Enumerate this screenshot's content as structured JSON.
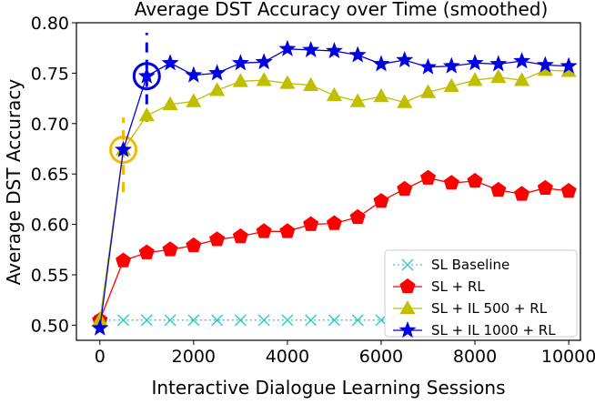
{
  "chart_data": {
    "type": "line",
    "title": "Average DST Accuracy over Time (smoothed)",
    "xlabel": "Interactive Dialogue Learning Sessions",
    "ylabel": "Average DST Accuracy",
    "xlim": [
      -500,
      10250
    ],
    "ylim": [
      0.485,
      0.8
    ],
    "x_ticks": [
      0,
      2000,
      4000,
      6000,
      8000,
      10000
    ],
    "y_ticks": [
      0.5,
      0.55,
      0.6,
      0.65,
      0.7,
      0.75,
      0.8
    ],
    "x_tick_labels": [
      "0",
      "2000",
      "4000",
      "6000",
      "8000",
      "10000"
    ],
    "y_tick_labels": [
      "0.50",
      "0.55",
      "0.60",
      "0.65",
      "0.70",
      "0.75",
      "0.80"
    ],
    "grid": false,
    "legend_position": "lower-right",
    "series": [
      {
        "name": "SL Baseline",
        "color": "#30c8c8",
        "line_style": "dotted",
        "marker": "x",
        "x": [
          0,
          500,
          1000,
          1500,
          2000,
          2500,
          3000,
          3500,
          4000,
          4500,
          5000,
          5500,
          6000,
          6500,
          7000,
          7500,
          8000,
          8500,
          9000,
          9500,
          10000
        ],
        "y": [
          0.505,
          0.505,
          0.505,
          0.505,
          0.505,
          0.505,
          0.505,
          0.505,
          0.505,
          0.505,
          0.505,
          0.505,
          0.505,
          0.505,
          0.505,
          0.505,
          0.505,
          0.505,
          0.505,
          0.505,
          0.505
        ]
      },
      {
        "name": "SL + RL",
        "color": "#ff0000",
        "line_style": "solid",
        "marker": "pentagon",
        "x": [
          0,
          500,
          1000,
          1500,
          2000,
          2500,
          3000,
          3500,
          4000,
          4500,
          5000,
          5500,
          6000,
          6500,
          7000,
          7500,
          8000,
          8500,
          9000,
          9500,
          10000
        ],
        "y": [
          0.505,
          0.564,
          0.572,
          0.575,
          0.579,
          0.585,
          0.588,
          0.593,
          0.593,
          0.6,
          0.601,
          0.607,
          0.623,
          0.635,
          0.646,
          0.641,
          0.643,
          0.634,
          0.63,
          0.636,
          0.633
        ]
      },
      {
        "name": "SL + IL 500 + RL",
        "color": "#bfbf00",
        "line_style": "solid",
        "marker": "triangle",
        "x": [
          0,
          500,
          1000,
          1500,
          2000,
          2500,
          3000,
          3500,
          4000,
          4500,
          5000,
          5500,
          6000,
          6500,
          7000,
          7500,
          8000,
          8500,
          9000,
          9500,
          10000
        ],
        "y": [
          0.505,
          0.674,
          0.708,
          0.719,
          0.722,
          0.733,
          0.742,
          0.743,
          0.74,
          0.738,
          0.728,
          0.722,
          0.727,
          0.721,
          0.731,
          0.737,
          0.743,
          0.746,
          0.743,
          0.753,
          0.752
        ]
      },
      {
        "name": "SL + IL 1000 + RL",
        "color": "#0000e0",
        "line_style": "solid",
        "marker": "star",
        "x": [
          0,
          500,
          1000,
          1500,
          2000,
          2500,
          3000,
          3500,
          4000,
          4500,
          5000,
          5500,
          6000,
          6500,
          7000,
          7500,
          8000,
          8500,
          9000,
          9500,
          10000
        ],
        "y": [
          0.497,
          0.674,
          0.747,
          0.76,
          0.748,
          0.75,
          0.76,
          0.761,
          0.774,
          0.773,
          0.772,
          0.768,
          0.759,
          0.763,
          0.756,
          0.757,
          0.76,
          0.759,
          0.762,
          0.758,
          0.757
        ]
      }
    ],
    "annotations": [
      {
        "type": "circle",
        "x": 500,
        "y": 0.674,
        "color": "#f5b800"
      },
      {
        "type": "vline-dashed",
        "x": 500,
        "y_from": 0.632,
        "y_to": 0.706,
        "color": "#f5b800"
      },
      {
        "type": "circle",
        "x": 1000,
        "y": 0.747,
        "color": "#0000e0"
      },
      {
        "type": "vline-dashed",
        "x": 1000,
        "y_from": 0.702,
        "y_to": 0.79,
        "color": "#0000e0"
      }
    ]
  }
}
